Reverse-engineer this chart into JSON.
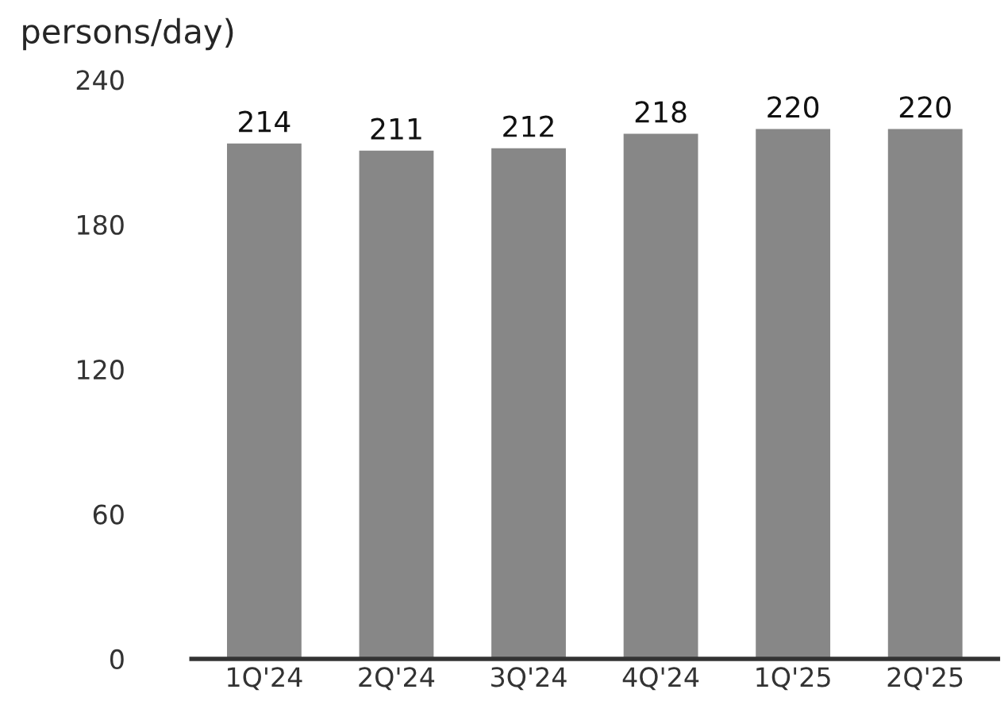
{
  "chart_data": {
    "type": "bar",
    "title": "persons/day)",
    "categories": [
      "1Q'24",
      "2Q'24",
      "3Q'24",
      "4Q'24",
      "1Q'25",
      "2Q'25"
    ],
    "values": [
      214,
      211,
      212,
      218,
      220,
      220
    ],
    "color": "#878787",
    "ylim": [
      0,
      240
    ],
    "yticks": [
      0,
      60,
      120,
      180,
      240
    ],
    "data_labels": true,
    "grid": false,
    "legend": false
  }
}
